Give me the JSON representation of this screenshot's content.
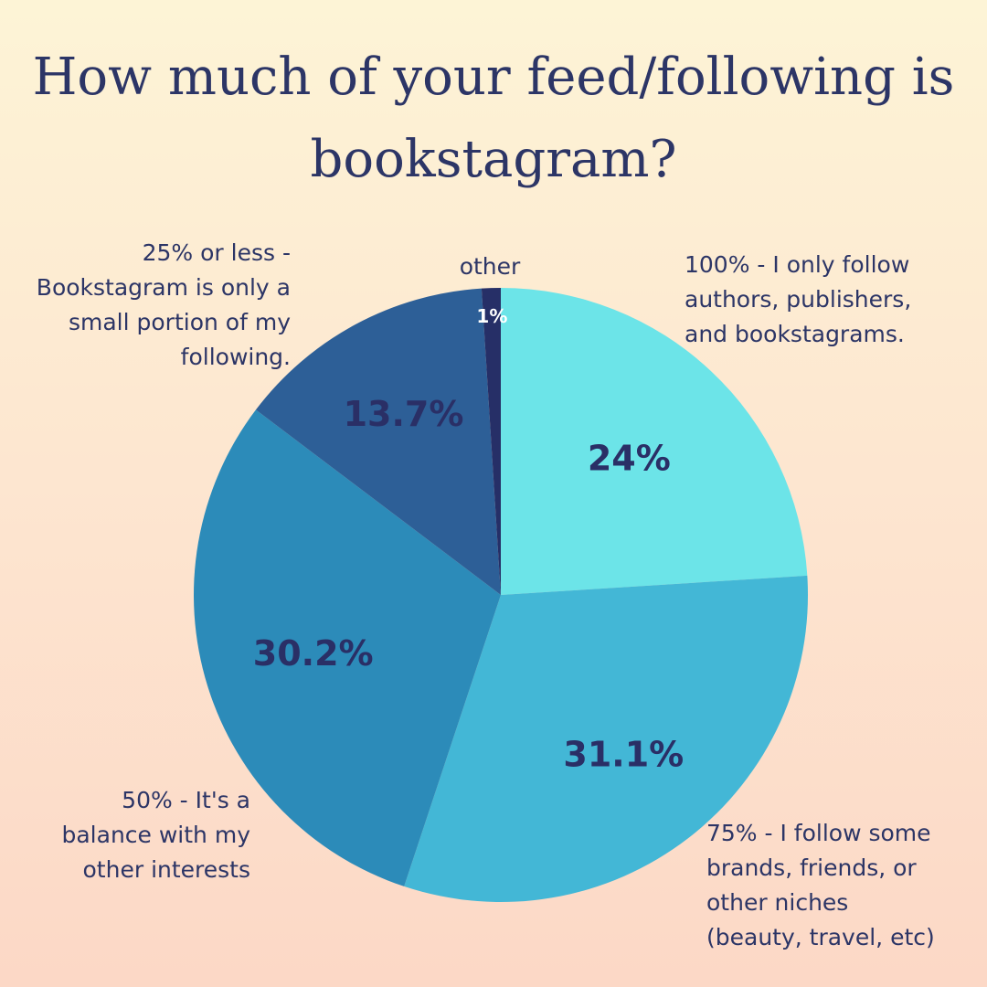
{
  "title_lines": [
    "How much of your feed/following is",
    "bookstagram?"
  ],
  "chart_data": {
    "type": "pie",
    "title": "How much of your feed/following is bookstagram?",
    "slices": [
      {
        "label": "100% - I only follow authors, publishers, and bookstagrams.",
        "value": 24,
        "value_label": "24%",
        "color": "#6ce4e8"
      },
      {
        "label": "75% - I follow some brands, friends, or other niches (beauty, travel, etc)",
        "value": 31.1,
        "value_label": "31.1%",
        "color": "#43b7d6"
      },
      {
        "label": "50% - It's a balance with my other interests",
        "value": 30.2,
        "value_label": "30.2%",
        "color": "#2c8bb9"
      },
      {
        "label": "25% or less - Bookstagram is only a small portion of my following.",
        "value": 13.7,
        "value_label": "13.7%",
        "color": "#2d5f97"
      },
      {
        "label": "other",
        "value": 1,
        "value_label": "1%",
        "color": "#262f67"
      }
    ],
    "start_angle": "12 o'clock",
    "direction": "clockwise",
    "legend": "none",
    "labels_outside": true
  },
  "labels": {
    "slice_0": "100% - I only follow\nauthors, publishers,\nand bookstagrams.",
    "slice_1": "75% - I follow some\nbrands, friends, or\nother niches\n(beauty, travel, etc)",
    "slice_2": "50% - It's a\nbalance with my\nother interests",
    "slice_3": "25% or less -\nBookstagram is only a\nsmall portion of my\nfollowing.",
    "slice_4": "other"
  },
  "colors": {
    "text": "#2c3566",
    "value_text": "#2a2f66",
    "small_value_text": "#ffffff"
  }
}
